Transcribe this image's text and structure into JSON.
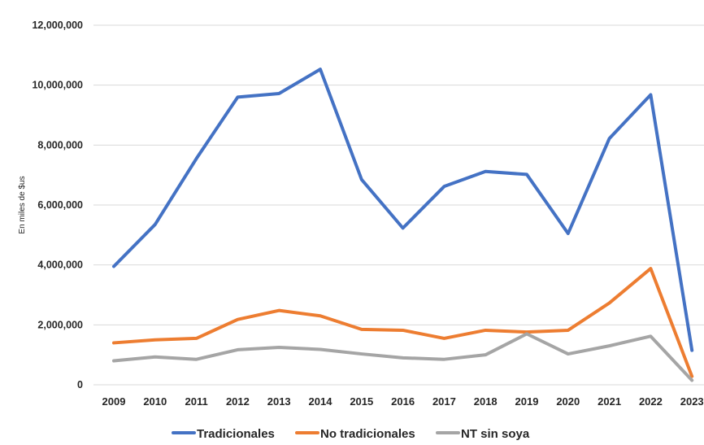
{
  "chart_data": {
    "type": "line",
    "title": "",
    "xlabel": "",
    "ylabel": "En miles de $us",
    "ylim": [
      0,
      12000000
    ],
    "yticks": [
      0,
      2000000,
      4000000,
      6000000,
      8000000,
      10000000,
      12000000
    ],
    "ytick_labels": [
      "0",
      "2,000,000",
      "4,000,000",
      "6,000,000",
      "8,000,000",
      "10,000,000",
      "12,000,000"
    ],
    "grid": true,
    "legend_position": "bottom",
    "categories": [
      "2009",
      "2010",
      "2011",
      "2012",
      "2013",
      "2014",
      "2015",
      "2016",
      "2017",
      "2018",
      "2019",
      "2020",
      "2021",
      "2022",
      "2023"
    ],
    "series": [
      {
        "name": "Tradicionales",
        "color": "#4472C4",
        "values": [
          3950000,
          5350000,
          7550000,
          9600000,
          9720000,
          10530000,
          6850000,
          5230000,
          6620000,
          7120000,
          7020000,
          5050000,
          8220000,
          9680000,
          1150000
        ]
      },
      {
        "name": "No tradicionales",
        "color": "#ED7D31",
        "values": [
          1400000,
          1500000,
          1550000,
          2180000,
          2480000,
          2300000,
          1850000,
          1820000,
          1550000,
          1820000,
          1760000,
          1820000,
          2730000,
          3880000,
          280000
        ]
      },
      {
        "name": "NT sin soya",
        "color": "#A5A5A5",
        "values": [
          800000,
          930000,
          850000,
          1170000,
          1250000,
          1180000,
          1030000,
          900000,
          850000,
          1000000,
          1700000,
          1030000,
          1300000,
          1620000,
          150000
        ]
      }
    ]
  }
}
